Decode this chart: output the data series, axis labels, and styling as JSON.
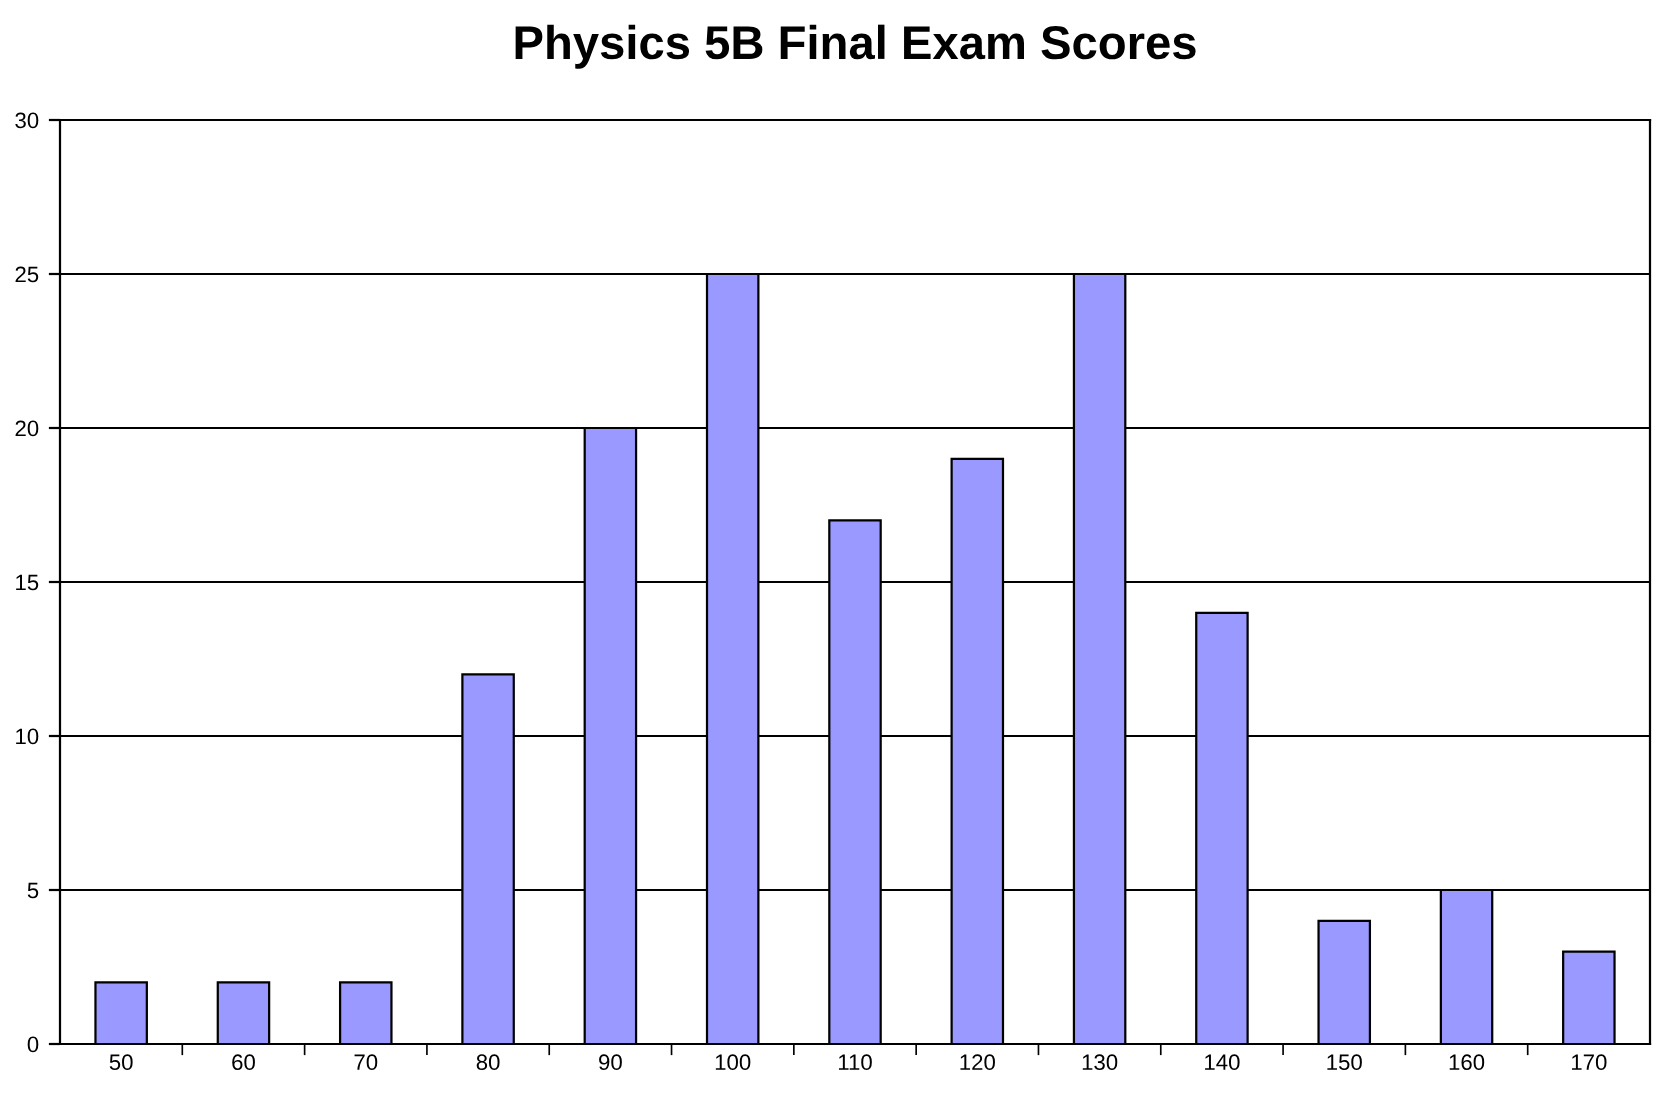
{
  "chart_data": {
    "type": "bar",
    "title": "Physics 5B Final Exam Scores",
    "categories": [
      "50",
      "60",
      "70",
      "80",
      "90",
      "100",
      "110",
      "120",
      "130",
      "140",
      "150",
      "160",
      "170"
    ],
    "values": [
      2,
      2,
      2,
      12,
      20,
      25,
      17,
      19,
      25,
      14,
      4,
      5,
      3
    ],
    "color": "#9999ff",
    "ylim": [
      0,
      30
    ],
    "yticks": [
      0,
      5,
      10,
      15,
      20,
      25,
      30
    ],
    "grid": "y"
  }
}
